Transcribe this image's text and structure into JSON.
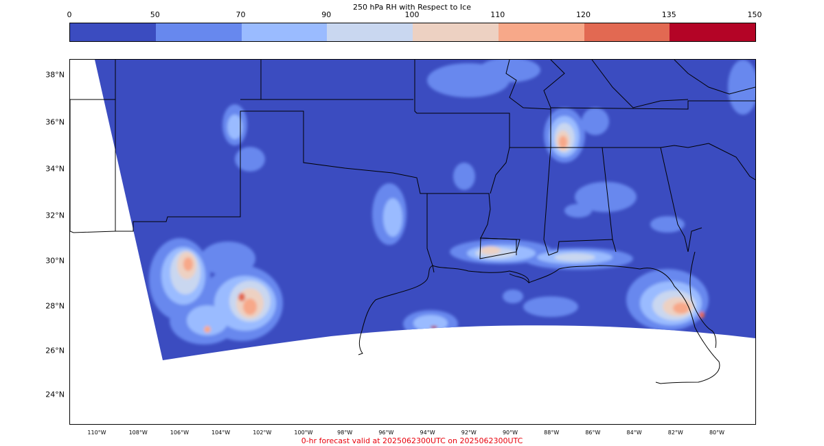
{
  "colorbar": {
    "title": "250 hPa RH with Respect to Ice",
    "ticks": [
      "0",
      "50",
      "70",
      "90",
      "100",
      "110",
      "120",
      "135",
      "150"
    ],
    "colors": [
      "#3b4cc0",
      "#6788ee",
      "#9abbff",
      "#c9d7f0",
      "#edd1c2",
      "#f7a889",
      "#e26952",
      "#b40426"
    ]
  },
  "map": {
    "lat_labels": [
      "38°N",
      "36°N",
      "34°N",
      "32°N",
      "30°N",
      "28°N",
      "26°N",
      "24°N"
    ],
    "lon_labels": [
      "110°W",
      "108°W",
      "106°W",
      "104°W",
      "102°W",
      "100°W",
      "98°W",
      "96°W",
      "94°W",
      "92°W",
      "90°W",
      "88°W",
      "86°W",
      "84°W",
      "82°W",
      "80°W"
    ],
    "background_color": "#3b4cc0",
    "border_color": "#000000"
  },
  "footer": {
    "text": "0-hr forecast valid at 2025062300UTC on 2025062300UTC",
    "color": "#e8000b"
  }
}
